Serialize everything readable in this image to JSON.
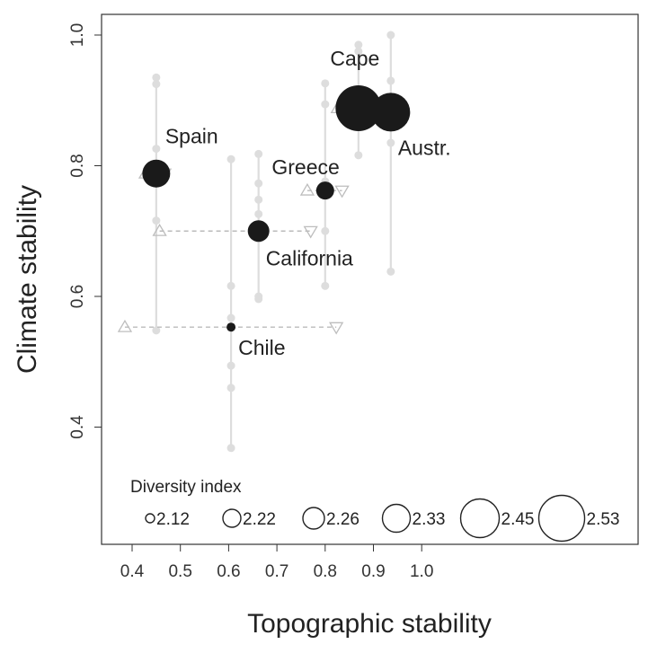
{
  "chart_data": {
    "type": "scatter",
    "xlabel": "Topographic stability",
    "ylabel": "Climate stability",
    "xlim": [
      0.37,
      1.0
    ],
    "ylim": [
      0.2,
      1.03
    ],
    "x_ticks": [
      "0.4",
      "0.5",
      "0.6",
      "0.7",
      "0.8",
      "0.9",
      "1.0"
    ],
    "y_ticks": [
      "0.4",
      "0.6",
      "0.8",
      "1.0"
    ],
    "grid": false,
    "colors": {
      "point": "#1a1a1a",
      "range": "#dddddd",
      "dash": "#bbbbbb",
      "triangle": "#bdbdbd"
    },
    "regions": [
      {
        "label": "Spain",
        "x": 0.45,
        "y": 0.788,
        "diversity": 2.33,
        "y_range": [
          0.548,
          0.935
        ],
        "y_samples": [
          0.548,
          0.716,
          0.788,
          0.826,
          0.925,
          0.935
        ],
        "x_range": [
          0.428,
          0.467
        ],
        "x_range_y": 0.788,
        "label_pos": "above-right"
      },
      {
        "label": "Spain",
        "x": 0.45,
        "y": 0.7,
        "diversity": null,
        "y_range": null,
        "y_samples": [],
        "x_range": [
          0.457,
          0.77
        ],
        "x_range_y": 0.7,
        "label_pos": "none"
      },
      {
        "label": "California",
        "x": 0.662,
        "y": 0.7,
        "diversity": 2.26,
        "y_range": [
          0.596,
          0.818
        ],
        "y_samples": [
          0.596,
          0.6,
          0.688,
          0.726,
          0.748,
          0.773,
          0.818
        ],
        "x_range": null,
        "x_range_y": 0.7,
        "label_pos": "below-right"
      },
      {
        "label": "Chile",
        "x": 0.605,
        "y": 0.553,
        "diversity": 2.12,
        "y_range": [
          0.368,
          0.81
        ],
        "y_samples": [
          0.368,
          0.46,
          0.494,
          0.567,
          0.616,
          0.81
        ],
        "x_range": [
          0.385,
          0.823
        ],
        "x_range_y": 0.553,
        "label_pos": "below-right"
      },
      {
        "label": "Greece",
        "x": 0.8,
        "y": 0.762,
        "diversity": 2.22,
        "y_range": [
          0.616,
          0.926
        ],
        "y_samples": [
          0.616,
          0.7,
          0.776,
          0.894,
          0.926
        ],
        "x_range": [
          0.763,
          0.835
        ],
        "x_range_y": 0.762,
        "label_pos": "above-left"
      },
      {
        "label": "Cape",
        "x": 0.869,
        "y": 0.888,
        "diversity": 2.53,
        "y_range": [
          0.816,
          0.985
        ],
        "y_samples": [
          0.816,
          0.862,
          0.878,
          0.887,
          0.916,
          0.975,
          0.985
        ],
        "x_range": [
          0.826,
          0.912
        ],
        "x_range_y": 0.888,
        "label_pos": "above"
      },
      {
        "label": "Austr.",
        "x": 0.936,
        "y": 0.882,
        "diversity": 2.45,
        "y_range": [
          0.638,
          1.0
        ],
        "y_samples": [
          0.638,
          0.835,
          0.87,
          0.93,
          1.0
        ],
        "x_range": [
          0.928,
          0.942
        ],
        "x_range_y": 0.882,
        "label_pos": "below-right"
      }
    ],
    "legend": {
      "title": "Diversity index",
      "position": "bottom-left",
      "entries": [
        {
          "value": 2.12,
          "label": "2.12"
        },
        {
          "value": 2.22,
          "label": "2.22"
        },
        {
          "value": 2.26,
          "label": "2.26"
        },
        {
          "value": 2.33,
          "label": "2.33"
        },
        {
          "value": 2.45,
          "label": "2.45"
        },
        {
          "value": 2.53,
          "label": "2.53"
        }
      ]
    }
  }
}
